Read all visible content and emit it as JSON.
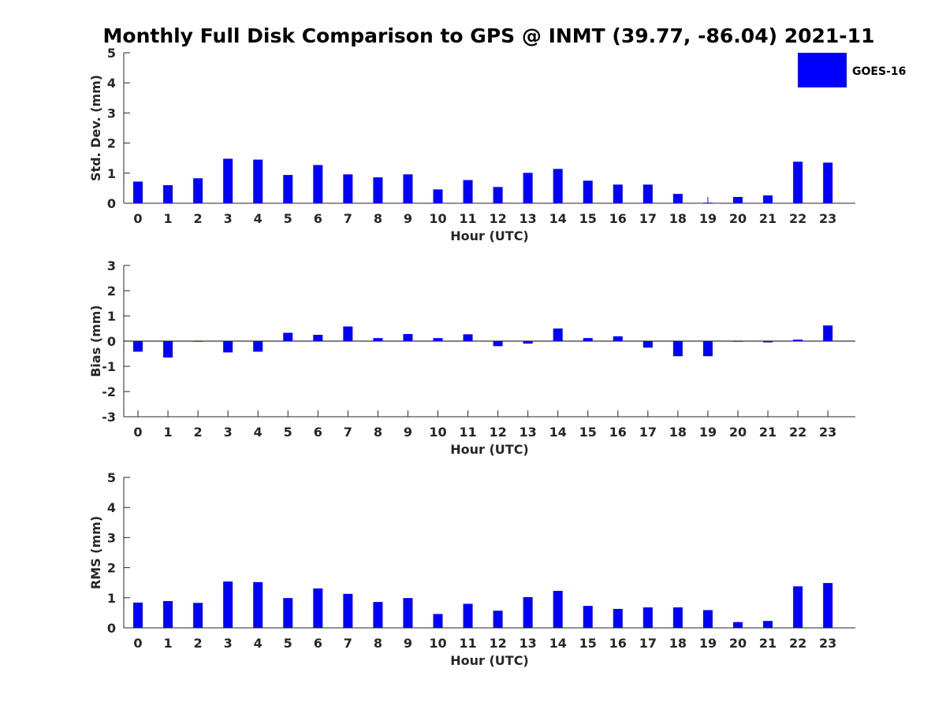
{
  "chart_data": {
    "title": "Monthly Full Disk Comparison to GPS @ INMT (39.77, -86.04) 2021-11",
    "legend": {
      "position": "top-right",
      "entries": [
        {
          "name": "GOES-16",
          "color": "#0000ff"
        }
      ]
    },
    "bar_color": "#0000ff",
    "panels": [
      {
        "type": "bar",
        "xlabel": "Hour (UTC)",
        "ylabel": "Std. Dev. (mm)",
        "ylim": [
          0,
          5
        ],
        "yticks": [
          "0",
          "1",
          "2",
          "3",
          "4",
          "5"
        ],
        "categories": [
          "0",
          "1",
          "2",
          "3",
          "4",
          "5",
          "6",
          "7",
          "8",
          "9",
          "10",
          "11",
          "12",
          "13",
          "14",
          "15",
          "16",
          "17",
          "18",
          "19",
          "20",
          "21",
          "22",
          "23"
        ],
        "series": [
          {
            "name": "GOES-16",
            "values": [
              0.72,
              0.6,
              0.83,
              1.48,
              1.45,
              0.94,
              1.27,
              0.96,
              0.86,
              0.96,
              0.46,
              0.77,
              0.54,
              1.01,
              1.14,
              0.75,
              0.62,
              0.62,
              0.31,
              0.02,
              0.21,
              0.26,
              1.38,
              1.35
            ]
          }
        ]
      },
      {
        "type": "bar",
        "xlabel": "Hour (UTC)",
        "ylabel": "Bias (mm)",
        "ylim": [
          -3,
          3
        ],
        "yticks": [
          "-3",
          "-2",
          "-1",
          "0",
          "1",
          "2",
          "3"
        ],
        "categories": [
          "0",
          "1",
          "2",
          "3",
          "4",
          "5",
          "6",
          "7",
          "8",
          "9",
          "10",
          "11",
          "12",
          "13",
          "14",
          "15",
          "16",
          "17",
          "18",
          "19",
          "20",
          "21",
          "22",
          "23"
        ],
        "series": [
          {
            "name": "GOES-16",
            "values": [
              -0.42,
              -0.65,
              0.0,
              -0.45,
              -0.42,
              0.33,
              0.25,
              0.58,
              0.12,
              0.28,
              0.12,
              0.27,
              -0.2,
              -0.1,
              0.5,
              0.12,
              0.19,
              -0.26,
              -0.6,
              -0.6,
              -0.02,
              -0.05,
              0.06,
              0.62
            ]
          }
        ]
      },
      {
        "type": "bar",
        "xlabel": "Hour (UTC)",
        "ylabel": "RMS (mm)",
        "ylim": [
          0,
          5
        ],
        "yticks": [
          "0",
          "1",
          "2",
          "3",
          "4",
          "5"
        ],
        "categories": [
          "0",
          "1",
          "2",
          "3",
          "4",
          "5",
          "6",
          "7",
          "8",
          "9",
          "10",
          "11",
          "12",
          "13",
          "14",
          "15",
          "16",
          "17",
          "18",
          "19",
          "20",
          "21",
          "22",
          "23"
        ],
        "series": [
          {
            "name": "GOES-16",
            "values": [
              0.84,
              0.89,
              0.83,
              1.54,
              1.52,
              0.99,
              1.31,
              1.13,
              0.86,
              0.99,
              0.46,
              0.8,
              0.57,
              1.02,
              1.23,
              0.73,
              0.63,
              0.68,
              0.68,
              0.59,
              0.19,
              0.23,
              1.38,
              1.49
            ]
          }
        ]
      }
    ]
  }
}
